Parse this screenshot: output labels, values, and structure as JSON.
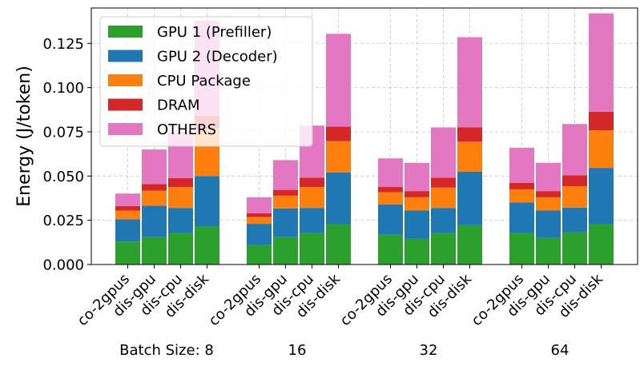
{
  "chart_data": {
    "type": "bar",
    "stacked": true,
    "title": "",
    "xlabel": "",
    "ylabel": "Energy (J/token)",
    "ylim": [
      0,
      0.145
    ],
    "yticks": [
      0.0,
      0.025,
      0.05,
      0.075,
      0.1,
      0.125
    ],
    "ytick_labels": [
      "0.000",
      "0.025",
      "0.050",
      "0.075",
      "0.100",
      "0.125"
    ],
    "grid": true,
    "legend_position": "top-left",
    "groups": [
      {
        "label": "Batch Size: 8"
      },
      {
        "label": "16"
      },
      {
        "label": "32"
      },
      {
        "label": "64"
      }
    ],
    "categories": [
      "co-2gpus",
      "dis-gpu",
      "dis-cpu",
      "dis-disk"
    ],
    "series": [
      {
        "name": "GPU 1 (Prefiller)",
        "color": "#2ca02c",
        "values": [
          [
            0.013,
            0.0155,
            0.0178,
            0.0215
          ],
          [
            0.011,
            0.0155,
            0.0178,
            0.0228
          ],
          [
            0.0168,
            0.0145,
            0.0178,
            0.0222
          ],
          [
            0.0178,
            0.015,
            0.0182,
            0.0228
          ]
        ]
      },
      {
        "name": "GPU 2 (Decoder)",
        "color": "#1f77b4",
        "values": [
          [
            0.0125,
            0.0178,
            0.0142,
            0.0285
          ],
          [
            0.012,
            0.0162,
            0.0142,
            0.0293
          ],
          [
            0.0172,
            0.016,
            0.0142,
            0.0302
          ],
          [
            0.0172,
            0.0155,
            0.014,
            0.0318
          ]
        ]
      },
      {
        "name": "CPU Package",
        "color": "#ff7f0e",
        "values": [
          [
            0.005,
            0.0085,
            0.0118,
            0.027
          ],
          [
            0.0038,
            0.0072,
            0.0118,
            0.0176
          ],
          [
            0.0068,
            0.0075,
            0.0115,
            0.017
          ],
          [
            0.0075,
            0.0075,
            0.012,
            0.0212
          ]
        ]
      },
      {
        "name": "DRAM",
        "color": "#d62728",
        "values": [
          [
            0.0025,
            0.0037,
            0.005,
            0.0072
          ],
          [
            0.0022,
            0.0033,
            0.0052,
            0.0082
          ],
          [
            0.003,
            0.0035,
            0.0055,
            0.0082
          ],
          [
            0.0037,
            0.0035,
            0.0062,
            0.0105
          ]
        ]
      },
      {
        "name": "OTHERS",
        "color": "#e377c2",
        "values": [
          [
            0.0071,
            0.0195,
            0.0262,
            0.0538
          ],
          [
            0.009,
            0.0168,
            0.0295,
            0.0525
          ],
          [
            0.0162,
            0.016,
            0.0285,
            0.0509
          ],
          [
            0.0198,
            0.016,
            0.029,
            0.0557
          ]
        ]
      }
    ]
  }
}
